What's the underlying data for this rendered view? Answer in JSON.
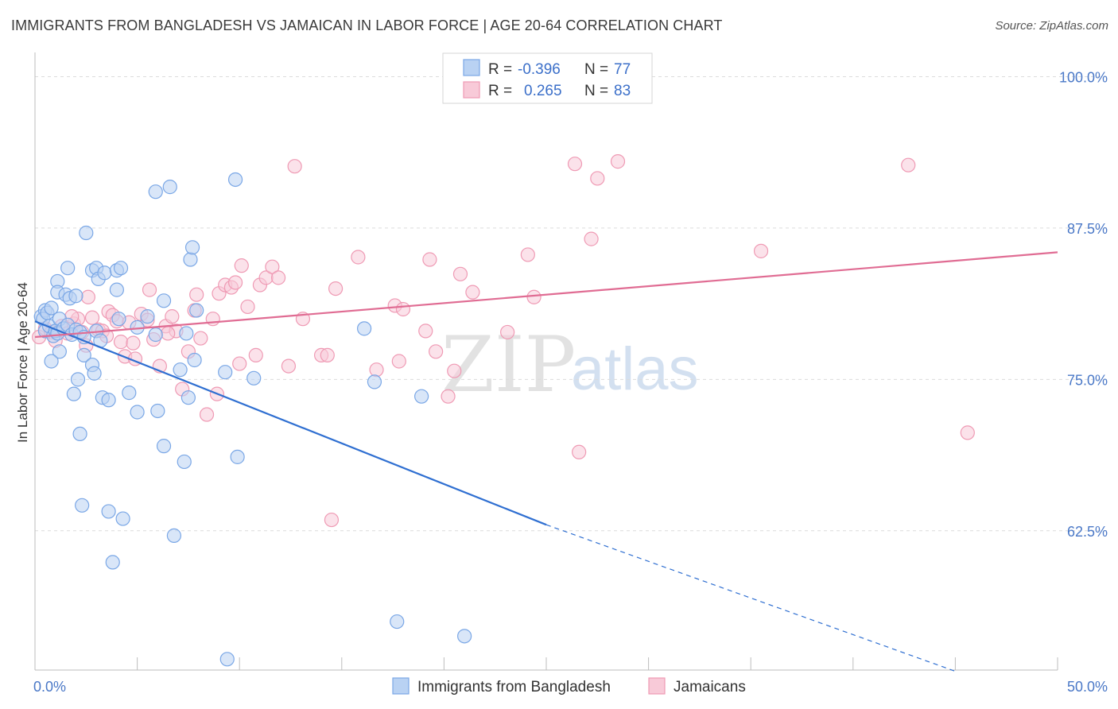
{
  "header": {
    "title": "IMMIGRANTS FROM BANGLADESH VS JAMAICAN IN LABOR FORCE | AGE 20-64 CORRELATION CHART",
    "source": "Source: ZipAtlas.com"
  },
  "watermark": {
    "zip": "ZIP",
    "atlas": "atlas"
  },
  "legend": {
    "rows": [
      {
        "r_label": "R =",
        "r_value": "-0.396",
        "n_label": "N =",
        "n_value": "77"
      },
      {
        "r_label": "R =",
        "r_value": "0.265",
        "n_label": "N =",
        "n_value": "83"
      }
    ]
  },
  "chart_data": {
    "type": "scatter",
    "ylabel": "In Labor Force | Age 20-64",
    "xlim": [
      0,
      50
    ],
    "ylim": [
      51,
      102
    ],
    "x_tick_labels": [
      "0.0%",
      "50.0%"
    ],
    "y_ticks": [
      100,
      87.5,
      75,
      62.5
    ],
    "y_tick_labels": [
      "100.0%",
      "87.5%",
      "75.0%",
      "62.5%"
    ],
    "grid": true,
    "legend_position": "top-center",
    "series": [
      {
        "name": "Immigrants from Bangladesh",
        "color": "#7aa7e6",
        "fill": "#b9d2f3",
        "trend": {
          "x0": 0,
          "y0": 79.8,
          "x1": 25,
          "y1": 63.0,
          "dash_to_x": 45,
          "dash_to_y": 50.9,
          "color": "#2f6fd1"
        },
        "points": [
          [
            0.3,
            80.2
          ],
          [
            0.5,
            80.7
          ],
          [
            0.4,
            80.0
          ],
          [
            0.6,
            80.5
          ],
          [
            0.8,
            80.9
          ],
          [
            0.5,
            79.0
          ],
          [
            0.7,
            79.4
          ],
          [
            0.9,
            78.6
          ],
          [
            1.0,
            79.0
          ],
          [
            1.1,
            78.8
          ],
          [
            1.2,
            80.0
          ],
          [
            1.4,
            79.2
          ],
          [
            1.6,
            79.5
          ],
          [
            1.8,
            78.7
          ],
          [
            2.0,
            79.1
          ],
          [
            2.2,
            78.9
          ],
          [
            2.4,
            78.5
          ],
          [
            3.0,
            79.0
          ],
          [
            1.1,
            83.1
          ],
          [
            1.1,
            82.2
          ],
          [
            1.5,
            82.0
          ],
          [
            1.7,
            81.7
          ],
          [
            2.0,
            81.9
          ],
          [
            1.6,
            84.2
          ],
          [
            2.8,
            84.0
          ],
          [
            3.0,
            84.2
          ],
          [
            3.1,
            83.3
          ],
          [
            3.4,
            83.8
          ],
          [
            4.0,
            84.0
          ],
          [
            4.2,
            84.2
          ],
          [
            4.0,
            82.4
          ],
          [
            1.2,
            77.3
          ],
          [
            0.8,
            76.5
          ],
          [
            2.4,
            77.0
          ],
          [
            2.8,
            76.2
          ],
          [
            2.9,
            75.5
          ],
          [
            2.1,
            75.0
          ],
          [
            1.9,
            73.8
          ],
          [
            3.3,
            73.5
          ],
          [
            3.6,
            73.3
          ],
          [
            4.6,
            73.9
          ],
          [
            5.0,
            72.3
          ],
          [
            6.0,
            72.4
          ],
          [
            5.5,
            80.2
          ],
          [
            5.9,
            78.7
          ],
          [
            6.3,
            81.5
          ],
          [
            7.1,
            75.8
          ],
          [
            7.5,
            73.5
          ],
          [
            7.3,
            68.2
          ],
          [
            6.3,
            69.5
          ],
          [
            7.9,
            80.7
          ],
          [
            7.4,
            78.8
          ],
          [
            7.8,
            76.6
          ],
          [
            7.6,
            84.9
          ],
          [
            7.7,
            85.9
          ],
          [
            9.3,
            75.6
          ],
          [
            10.7,
            75.1
          ],
          [
            9.9,
            68.6
          ],
          [
            6.8,
            62.1
          ],
          [
            4.3,
            63.5
          ],
          [
            3.6,
            64.1
          ],
          [
            2.3,
            64.6
          ],
          [
            3.8,
            59.9
          ],
          [
            2.2,
            70.5
          ],
          [
            5.9,
            90.5
          ],
          [
            6.6,
            90.9
          ],
          [
            9.8,
            91.5
          ],
          [
            2.5,
            87.1
          ],
          [
            16.1,
            79.2
          ],
          [
            16.6,
            74.8
          ],
          [
            18.9,
            73.6
          ],
          [
            17.7,
            55.0
          ],
          [
            21.0,
            53.8
          ],
          [
            9.4,
            51.9
          ],
          [
            5.0,
            79.3
          ],
          [
            3.2,
            78.2
          ],
          [
            4.1,
            80.0
          ]
        ]
      },
      {
        "name": "Jamaicans",
        "color": "#ef9ab4",
        "fill": "#f8cad8",
        "trend": {
          "x0": 0,
          "y0": 78.5,
          "x1": 50,
          "y1": 85.5,
          "color": "#e06c93"
        },
        "points": [
          [
            0.2,
            78.5
          ],
          [
            0.5,
            79.2
          ],
          [
            0.8,
            78.9
          ],
          [
            1.0,
            78.2
          ],
          [
            1.3,
            79.4
          ],
          [
            1.6,
            78.8
          ],
          [
            1.9,
            79.6
          ],
          [
            2.1,
            80.0
          ],
          [
            2.3,
            78.9
          ],
          [
            2.5,
            77.8
          ],
          [
            2.8,
            80.1
          ],
          [
            3.1,
            79.1
          ],
          [
            3.3,
            79.0
          ],
          [
            3.6,
            80.6
          ],
          [
            3.8,
            80.3
          ],
          [
            4.0,
            79.8
          ],
          [
            4.2,
            78.1
          ],
          [
            4.4,
            76.9
          ],
          [
            4.6,
            79.7
          ],
          [
            4.8,
            78.0
          ],
          [
            5.2,
            80.4
          ],
          [
            5.5,
            79.9
          ],
          [
            5.8,
            78.3
          ],
          [
            6.1,
            76.1
          ],
          [
            6.4,
            79.4
          ],
          [
            6.7,
            80.2
          ],
          [
            6.9,
            79.0
          ],
          [
            7.2,
            74.2
          ],
          [
            7.5,
            77.3
          ],
          [
            7.8,
            80.7
          ],
          [
            8.1,
            78.4
          ],
          [
            8.4,
            72.1
          ],
          [
            8.7,
            80.0
          ],
          [
            5.6,
            82.4
          ],
          [
            7.9,
            82.0
          ],
          [
            9.0,
            82.1
          ],
          [
            9.3,
            82.8
          ],
          [
            9.6,
            82.6
          ],
          [
            9.8,
            83.0
          ],
          [
            10.1,
            84.4
          ],
          [
            10.4,
            81.0
          ],
          [
            10.8,
            77.0
          ],
          [
            11.0,
            82.8
          ],
          [
            11.3,
            83.4
          ],
          [
            11.6,
            84.3
          ],
          [
            11.9,
            83.4
          ],
          [
            12.4,
            76.1
          ],
          [
            13.1,
            80.0
          ],
          [
            14.0,
            77.0
          ],
          [
            14.3,
            77.0
          ],
          [
            14.7,
            82.5
          ],
          [
            15.8,
            85.1
          ],
          [
            16.7,
            75.8
          ],
          [
            17.6,
            81.1
          ],
          [
            17.8,
            76.5
          ],
          [
            18.0,
            80.8
          ],
          [
            19.1,
            79.0
          ],
          [
            19.3,
            84.9
          ],
          [
            19.6,
            77.3
          ],
          [
            20.2,
            73.6
          ],
          [
            20.5,
            75.7
          ],
          [
            20.8,
            83.7
          ],
          [
            21.4,
            82.2
          ],
          [
            23.1,
            78.9
          ],
          [
            24.1,
            85.3
          ],
          [
            24.4,
            81.8
          ],
          [
            26.6,
            69.0
          ],
          [
            27.2,
            86.6
          ],
          [
            26.4,
            92.8
          ],
          [
            27.5,
            91.6
          ],
          [
            28.5,
            93.0
          ],
          [
            35.5,
            85.6
          ],
          [
            42.7,
            92.7
          ],
          [
            45.6,
            70.6
          ],
          [
            12.7,
            92.6
          ],
          [
            14.5,
            63.4
          ],
          [
            10.0,
            76.3
          ],
          [
            6.5,
            78.8
          ],
          [
            3.5,
            78.6
          ],
          [
            1.8,
            80.2
          ],
          [
            2.6,
            81.8
          ],
          [
            4.9,
            76.7
          ],
          [
            8.9,
            73.8
          ]
        ]
      }
    ]
  }
}
